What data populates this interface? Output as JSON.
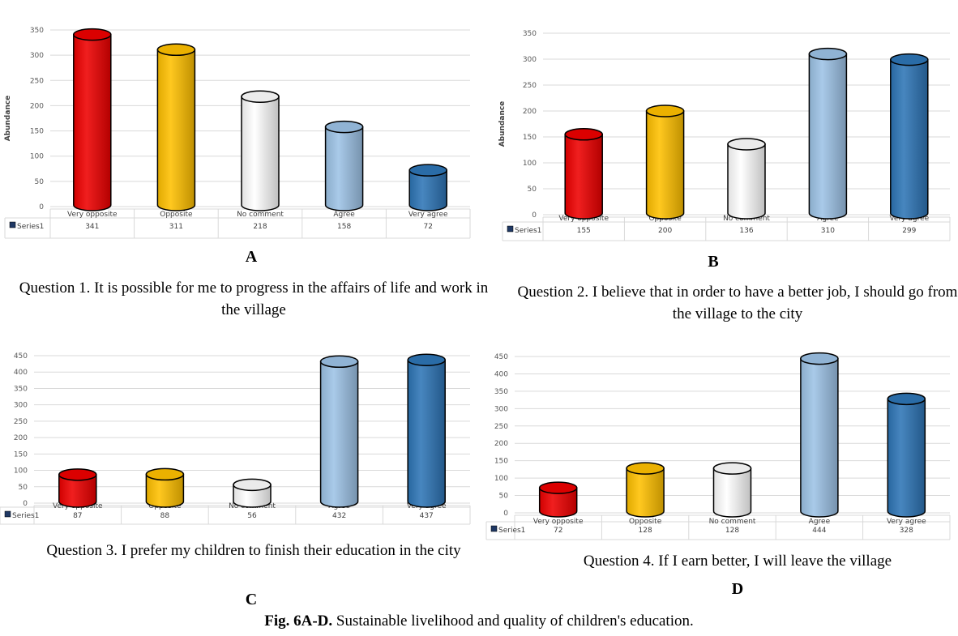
{
  "categories": [
    "Very opposite",
    "Opposite",
    "No comment",
    "Agree",
    "Very agree"
  ],
  "colors": [
    "#ee0000",
    "#ffc000",
    "#ffffff",
    "#9dc3e6",
    "#2e75b6"
  ],
  "series_label": "Series1",
  "charts": [
    {
      "letter": "A",
      "ylabel": "Abundance",
      "question": "Question 1. It is possible for me to progress in the affairs of life and work in the village"
    },
    {
      "letter": "B",
      "ylabel": "Abundance",
      "question": "Question 2. I believe that in order to have a better job, I should go from the village to the city"
    },
    {
      "letter": "C",
      "ylabel": "",
      "question": "Question 3. I prefer my children to finish their education in the city"
    },
    {
      "letter": "D",
      "ylabel": "",
      "question": "Question 4. If I earn better, I will leave the village"
    }
  ],
  "caption": {
    "bold": "Fig. 6A-D.",
    "text": " Sustainable livelihood and quality of children's education."
  },
  "chart_data": [
    {
      "type": "bar",
      "title": "",
      "xlabel": "",
      "ylabel": "Abundance",
      "categories": [
        "Very opposite",
        "Opposite",
        "No comment",
        "Agree",
        "Very agree"
      ],
      "series": [
        {
          "name": "Series1",
          "values": [
            341,
            311,
            218,
            158,
            72
          ]
        }
      ],
      "ylim": [
        0,
        350
      ],
      "yticks": [
        0,
        50,
        100,
        150,
        200,
        250,
        300,
        350
      ],
      "grid": true
    },
    {
      "type": "bar",
      "title": "",
      "xlabel": "",
      "ylabel": "Abundance",
      "categories": [
        "Very opposite",
        "Opposite",
        "No comment",
        "Agree",
        "Very agree"
      ],
      "series": [
        {
          "name": "Series1",
          "values": [
            155,
            200,
            136,
            310,
            299
          ]
        }
      ],
      "ylim": [
        0,
        350
      ],
      "yticks": [
        0,
        50,
        100,
        150,
        200,
        250,
        300,
        350
      ],
      "grid": true
    },
    {
      "type": "bar",
      "title": "",
      "xlabel": "",
      "ylabel": "",
      "categories": [
        "Very opposite",
        "Opposite",
        "No comment",
        "Agree",
        "Very agree"
      ],
      "series": [
        {
          "name": "Series1",
          "values": [
            87,
            88,
            56,
            432,
            437
          ]
        }
      ],
      "ylim": [
        0,
        450
      ],
      "yticks": [
        0,
        50,
        100,
        150,
        200,
        250,
        300,
        350,
        400,
        450
      ],
      "grid": true
    },
    {
      "type": "bar",
      "title": "",
      "xlabel": "",
      "ylabel": "",
      "categories": [
        "Very opposite",
        "Opposite",
        "No comment",
        "Agree",
        "Very agree"
      ],
      "series": [
        {
          "name": "Series1",
          "values": [
            72,
            128,
            128,
            444,
            328
          ]
        }
      ],
      "ylim": [
        0,
        450
      ],
      "yticks": [
        0,
        50,
        100,
        150,
        200,
        250,
        300,
        350,
        400,
        450
      ],
      "grid": true
    }
  ]
}
